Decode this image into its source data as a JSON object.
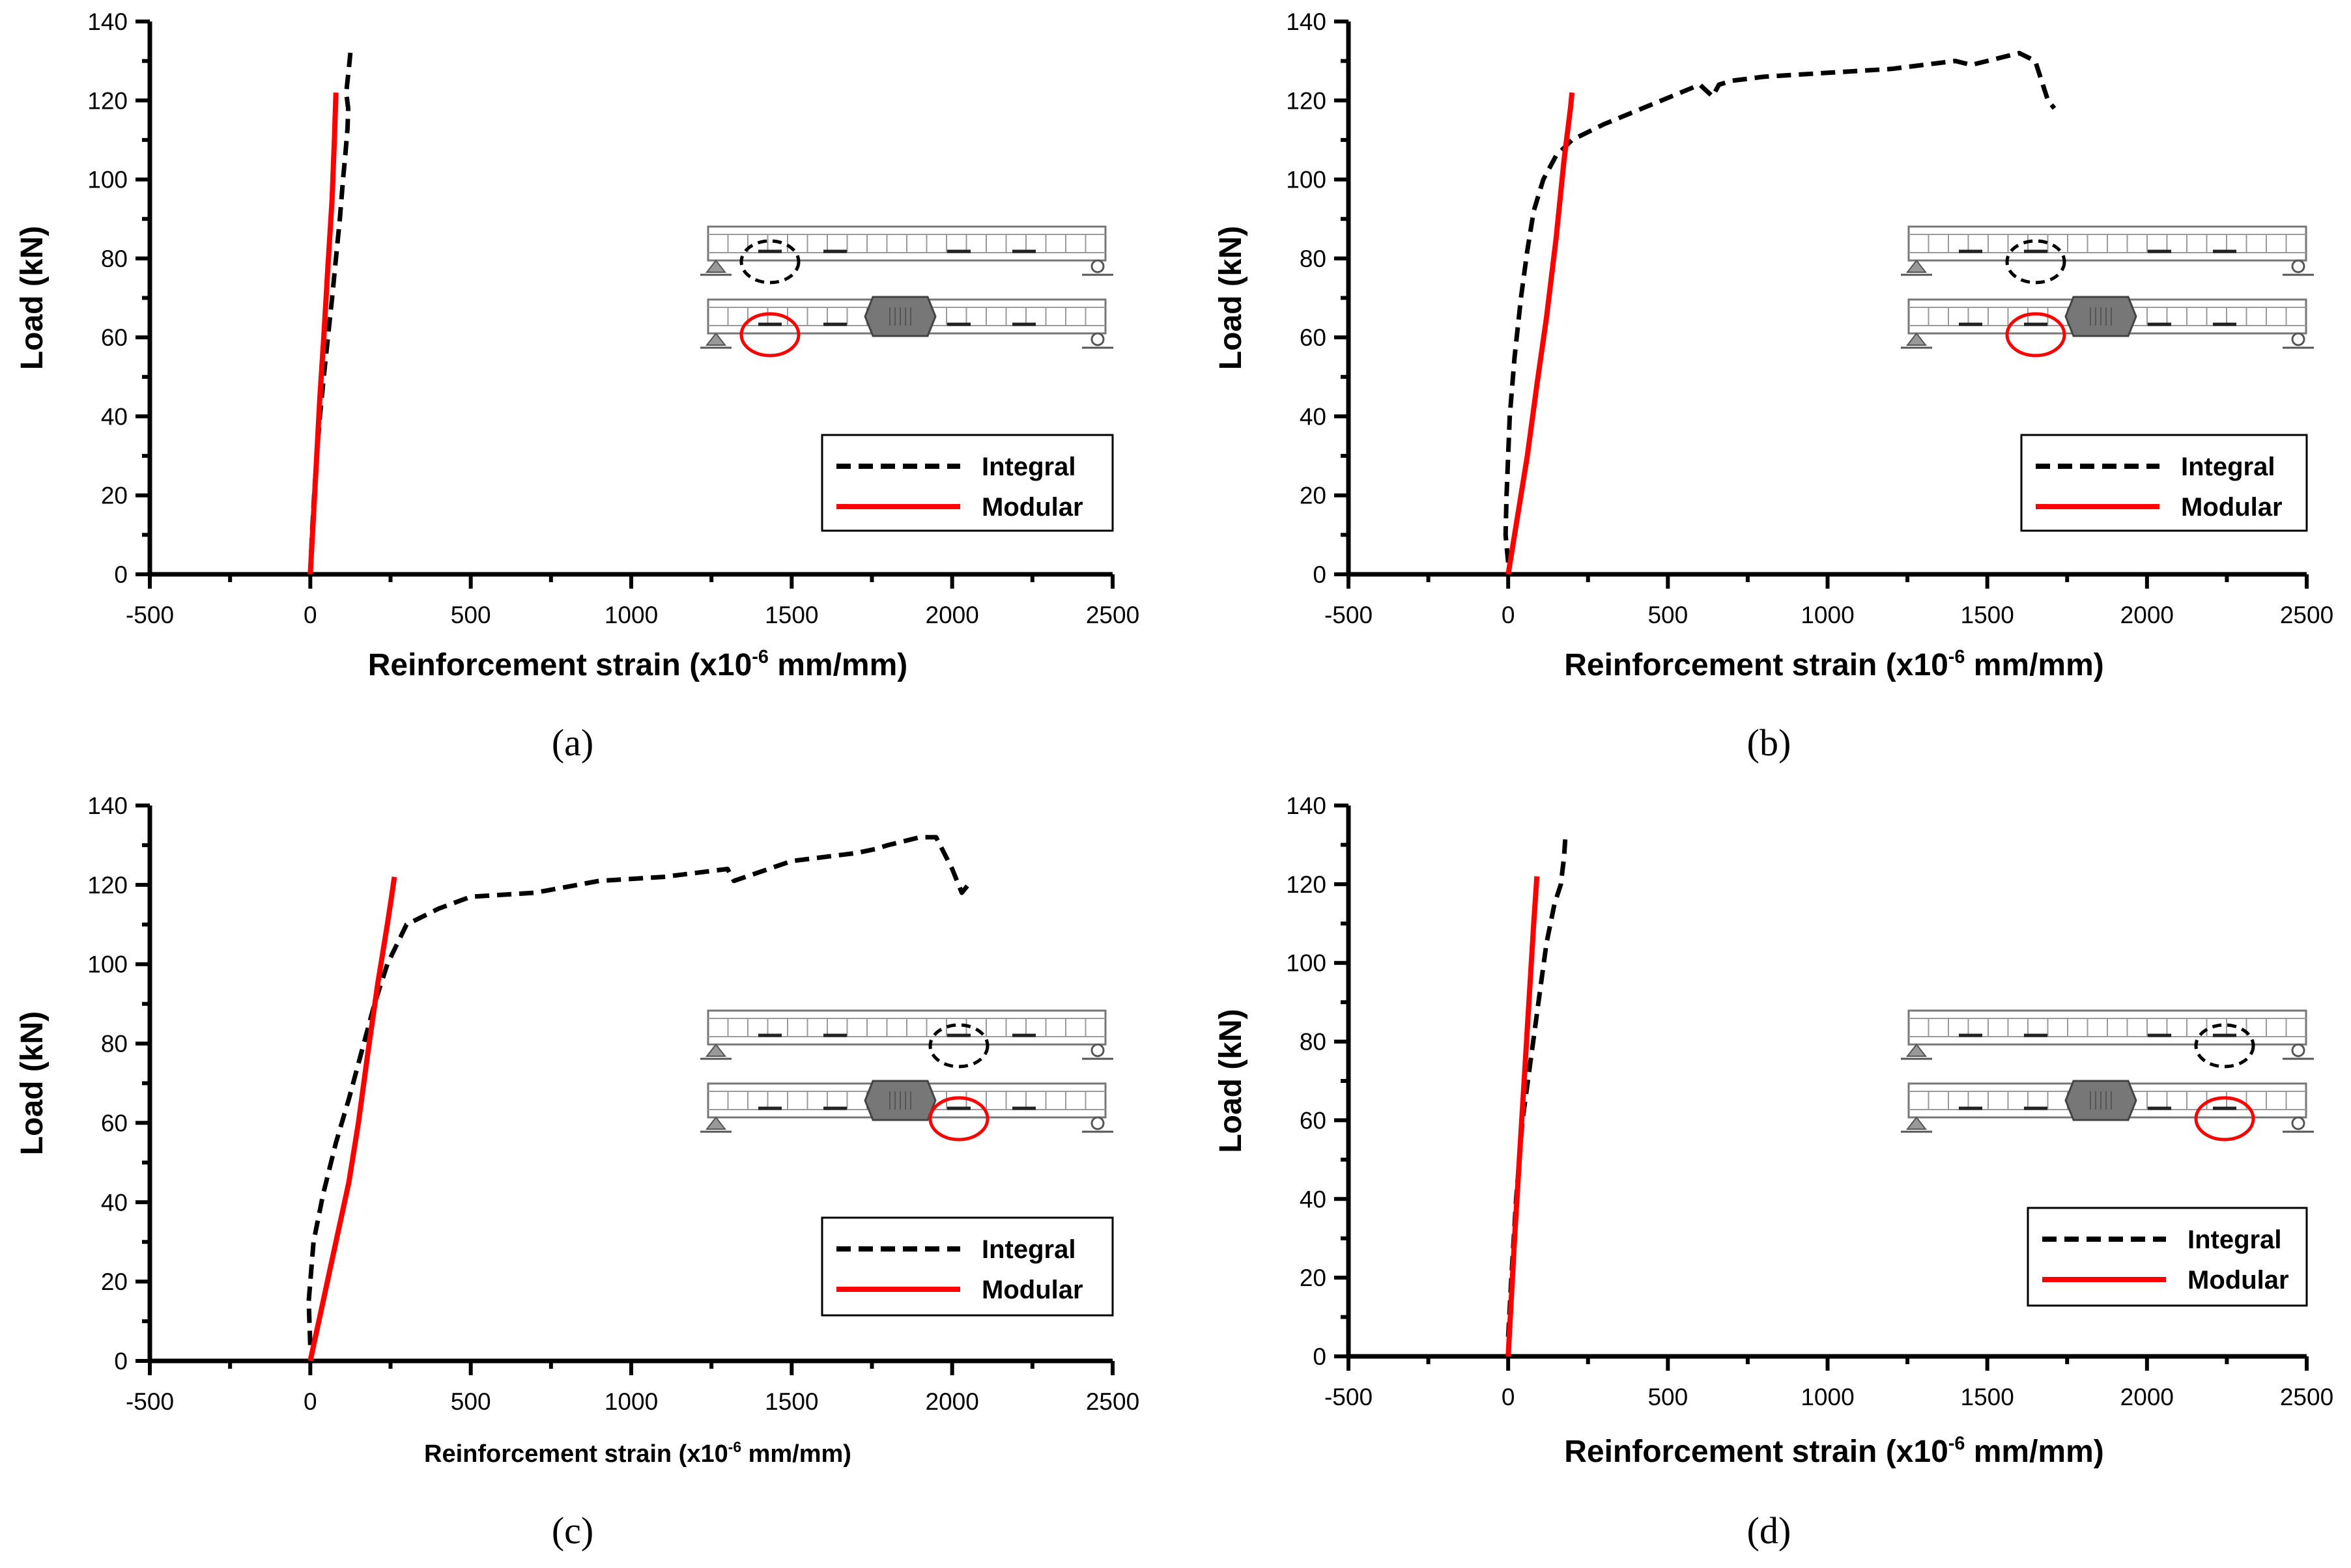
{
  "chart_data": [
    {
      "id": "a",
      "type": "line",
      "panel_label": "(a)",
      "xlabel": "Reinforcement strain (x10",
      "xlabel_sup": "-6",
      "xlabel_tail": " mm/mm)",
      "ylabel": "Load (kN)",
      "xlim": [
        -500,
        2500
      ],
      "ylim": [
        0,
        140
      ],
      "x_ticks": [
        "-500",
        "0",
        "500",
        "1000",
        "1500",
        "2000",
        "2500"
      ],
      "y_ticks": [
        "0",
        "20",
        "40",
        "60",
        "80",
        "100",
        "120",
        "140"
      ],
      "gauge_position": 1,
      "series": [
        {
          "name": "Integral",
          "style": "dashed",
          "color": "#000000",
          "x": [
            0,
            5,
            12,
            20,
            30,
            42,
            55,
            68,
            80,
            92,
            102,
            110,
            116,
            118,
            112,
            120,
            126
          ],
          "y": [
            0,
            10,
            20,
            30,
            40,
            50,
            60,
            70,
            80,
            90,
            100,
            107,
            113,
            118,
            122,
            128,
            133
          ]
        },
        {
          "name": "Modular",
          "style": "solid",
          "color": "#ff0000",
          "x": [
            0,
            10,
            20,
            30,
            42,
            55,
            68,
            75,
            80
          ],
          "y": [
            0,
            15,
            30,
            45,
            60,
            78,
            95,
            110,
            122
          ]
        }
      ]
    },
    {
      "id": "b",
      "type": "line",
      "panel_label": "(b)",
      "xlabel": "Reinforcement strain (x10",
      "xlabel_sup": "-6",
      "xlabel_tail": " mm/mm)",
      "ylabel": "Load (kN)",
      "xlim": [
        -500,
        2500
      ],
      "ylim": [
        0,
        140
      ],
      "x_ticks": [
        "-500",
        "0",
        "500",
        "1000",
        "1500",
        "2000",
        "2500"
      ],
      "y_ticks": [
        "0",
        "20",
        "40",
        "60",
        "80",
        "100",
        "120",
        "140"
      ],
      "gauge_position": 2,
      "series": [
        {
          "name": "Integral",
          "style": "dashed",
          "color": "#000000",
          "x": [
            0,
            -8,
            -5,
            5,
            20,
            40,
            60,
            80,
            110,
            150,
            200,
            300,
            450,
            600,
            640,
            660,
            700,
            800,
            1000,
            1200,
            1400,
            1450,
            1600,
            1650,
            1690,
            1710
          ],
          "y": [
            3,
            10,
            20,
            40,
            55,
            70,
            82,
            92,
            100,
            106,
            110,
            114,
            119,
            124,
            121,
            124,
            125,
            126,
            127,
            128,
            130,
            129,
            132,
            130,
            120,
            118
          ]
        },
        {
          "name": "Modular",
          "style": "solid",
          "color": "#ff0000",
          "x": [
            0,
            30,
            60,
            90,
            120,
            150,
            175,
            195,
            200
          ],
          "y": [
            0,
            15,
            30,
            48,
            65,
            85,
            105,
            118,
            122
          ]
        }
      ]
    },
    {
      "id": "c",
      "type": "line",
      "panel_label": "(c)",
      "xlabel": "Reinforcement strain (x10",
      "xlabel_sup": "-6",
      "xlabel_tail": " mm/mm)",
      "ylabel": "Load (kN)",
      "xlim": [
        -500,
        2500
      ],
      "ylim": [
        0,
        140
      ],
      "x_ticks": [
        "-500",
        "0",
        "500",
        "1000",
        "1500",
        "2000",
        "2500"
      ],
      "y_ticks": [
        "0",
        "20",
        "40",
        "60",
        "80",
        "100",
        "120",
        "140"
      ],
      "gauge_position": 3,
      "series": [
        {
          "name": "Integral",
          "style": "dashed",
          "color": "#000000",
          "x": [
            0,
            -5,
            10,
            40,
            80,
            120,
            160,
            200,
            240,
            300,
            400,
            500,
            700,
            900,
            1100,
            1300,
            1320,
            1500,
            1700,
            1760,
            1800,
            1900,
            1950,
            2000,
            2030,
            2050
          ],
          "y": [
            4,
            15,
            30,
            42,
            55,
            66,
            78,
            90,
            100,
            110,
            114,
            117,
            118,
            121,
            122,
            124,
            121,
            126,
            128,
            129,
            130,
            132,
            132,
            124,
            118,
            120
          ]
        },
        {
          "name": "Modular",
          "style": "solid",
          "color": "#ff0000",
          "x": [
            0,
            40,
            80,
            120,
            150,
            180,
            210,
            240,
            255,
            262
          ],
          "y": [
            0,
            15,
            30,
            45,
            60,
            78,
            95,
            110,
            118,
            122
          ]
        }
      ]
    },
    {
      "id": "d",
      "type": "line",
      "panel_label": "(d)",
      "xlabel": "Reinforcement strain (x10",
      "xlabel_sup": "-6",
      "xlabel_tail": " mm/mm)",
      "ylabel": "Load (kN)",
      "xlim": [
        -500,
        2500
      ],
      "ylim": [
        0,
        140
      ],
      "x_ticks": [
        "-500",
        "0",
        "500",
        "1000",
        "1500",
        "2000",
        "2500"
      ],
      "y_ticks": [
        "0",
        "20",
        "40",
        "60",
        "80",
        "100",
        "120",
        "140"
      ],
      "gauge_position": 4,
      "series": [
        {
          "name": "Integral",
          "style": "dashed",
          "color": "#000000",
          "x": [
            0,
            10,
            25,
            45,
            70,
            95,
            120,
            145,
            165,
            175,
            180
          ],
          "y": [
            5,
            20,
            40,
            60,
            75,
            90,
            105,
            115,
            120,
            127,
            133
          ]
        },
        {
          "name": "Modular",
          "style": "solid",
          "color": "#ff0000",
          "x": [
            0,
            10,
            20,
            35,
            50,
            65,
            80,
            90
          ],
          "y": [
            0,
            15,
            30,
            50,
            70,
            90,
            110,
            122
          ]
        }
      ]
    }
  ]
}
